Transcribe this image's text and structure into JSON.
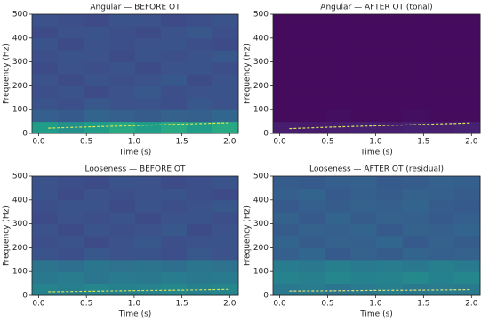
{
  "chart_data": [
    {
      "type": "spectrogram",
      "title": "Angular — BEFORE OT",
      "xlabel": "Time (s)",
      "ylabel": "Frequency (Hz)",
      "xlim": [
        -0.07,
        2.09
      ],
      "ylim": [
        0,
        500
      ],
      "xticks": [
        {
          "value": 0,
          "label": "0.0"
        },
        {
          "value": 0.5,
          "label": "0.5"
        },
        {
          "value": 1,
          "label": "1.0"
        },
        {
          "value": 1.5,
          "label": "1.5"
        },
        {
          "value": 2,
          "label": "2.0"
        }
      ],
      "yticks": [
        0,
        100,
        200,
        300,
        400,
        500
      ],
      "colormap": "viridis",
      "zlim": [
        0,
        1
      ],
      "z": [
        [
          0.55,
          0.5,
          0.55,
          0.6,
          0.55,
          0.6,
          0.55,
          0.6
        ],
        [
          0.3,
          0.28,
          0.32,
          0.3,
          0.29,
          0.31,
          0.3,
          0.33
        ],
        [
          0.26,
          0.24,
          0.27,
          0.25,
          0.26,
          0.24,
          0.27,
          0.25
        ],
        [
          0.24,
          0.26,
          0.23,
          0.25,
          0.27,
          0.24,
          0.25,
          0.26
        ],
        [
          0.25,
          0.23,
          0.26,
          0.24,
          0.25,
          0.27,
          0.23,
          0.25
        ],
        [
          0.23,
          0.25,
          0.24,
          0.26,
          0.23,
          0.25,
          0.26,
          0.24
        ],
        [
          0.24,
          0.26,
          0.25,
          0.23,
          0.26,
          0.24,
          0.25,
          0.27
        ],
        [
          0.26,
          0.23,
          0.25,
          0.24,
          0.25,
          0.26,
          0.24,
          0.23
        ],
        [
          0.23,
          0.25,
          0.26,
          0.24,
          0.23,
          0.25,
          0.27,
          0.24
        ],
        [
          0.25,
          0.24,
          0.23,
          0.26,
          0.25,
          0.23,
          0.24,
          0.26
        ]
      ],
      "ridge": {
        "x": [
          0.1,
          0.5,
          1.0,
          1.5,
          2.0
        ],
        "y": [
          22,
          27,
          33,
          39,
          45
        ],
        "color": "#d9e35a"
      }
    },
    {
      "type": "spectrogram",
      "title": "Angular — AFTER OT (tonal)",
      "xlabel": "Time (s)",
      "ylabel": "Frequency (Hz)",
      "xlim": [
        -0.07,
        2.09
      ],
      "ylim": [
        0,
        500
      ],
      "xticks": [
        {
          "value": 0,
          "label": "0.0"
        },
        {
          "value": 0.5,
          "label": "0.5"
        },
        {
          "value": 1,
          "label": "1.0"
        },
        {
          "value": 1.5,
          "label": "1.5"
        },
        {
          "value": 2,
          "label": "2.0"
        }
      ],
      "yticks": [
        0,
        100,
        200,
        300,
        400,
        500
      ],
      "colormap": "viridis",
      "zlim": [
        0,
        1
      ],
      "z": [
        [
          0.08,
          0.07,
          0.08,
          0.09,
          0.08,
          0.09,
          0.08,
          0.09
        ],
        [
          0.03,
          0.03,
          0.04,
          0.03,
          0.03,
          0.04,
          0.03,
          0.03
        ],
        [
          0.03,
          0.03,
          0.03,
          0.03,
          0.03,
          0.03,
          0.03,
          0.03
        ],
        [
          0.03,
          0.03,
          0.03,
          0.03,
          0.03,
          0.03,
          0.03,
          0.03
        ],
        [
          0.03,
          0.03,
          0.03,
          0.03,
          0.03,
          0.03,
          0.03,
          0.03
        ],
        [
          0.03,
          0.03,
          0.03,
          0.03,
          0.03,
          0.03,
          0.03,
          0.03
        ],
        [
          0.03,
          0.03,
          0.03,
          0.03,
          0.03,
          0.03,
          0.03,
          0.03
        ],
        [
          0.03,
          0.03,
          0.03,
          0.03,
          0.03,
          0.03,
          0.03,
          0.03
        ],
        [
          0.03,
          0.03,
          0.03,
          0.03,
          0.03,
          0.03,
          0.03,
          0.03
        ],
        [
          0.03,
          0.03,
          0.03,
          0.03,
          0.03,
          0.03,
          0.03,
          0.03
        ]
      ],
      "ridge": {
        "x": [
          0.1,
          0.5,
          1.0,
          1.5,
          2.0
        ],
        "y": [
          20,
          26,
          32,
          38,
          44
        ],
        "color": "#d9e35a"
      }
    },
    {
      "type": "spectrogram",
      "title": "Looseness — BEFORE OT",
      "xlabel": "Time (s)",
      "ylabel": "Frequency (Hz)",
      "xlim": [
        -0.07,
        2.09
      ],
      "ylim": [
        0,
        500
      ],
      "xticks": [
        {
          "value": 0,
          "label": "0.0"
        },
        {
          "value": 0.5,
          "label": "0.5"
        },
        {
          "value": 1,
          "label": "1.0"
        },
        {
          "value": 1.5,
          "label": "1.5"
        },
        {
          "value": 2,
          "label": "2.0"
        }
      ],
      "yticks": [
        0,
        100,
        200,
        300,
        400,
        500
      ],
      "colormap": "viridis",
      "zlim": [
        0,
        1
      ],
      "z": [
        [
          0.45,
          0.43,
          0.46,
          0.44,
          0.45,
          0.47,
          0.44,
          0.46
        ],
        [
          0.4,
          0.42,
          0.39,
          0.41,
          0.4,
          0.42,
          0.4,
          0.41
        ],
        [
          0.38,
          0.36,
          0.39,
          0.37,
          0.38,
          0.36,
          0.39,
          0.37
        ],
        [
          0.26,
          0.24,
          0.27,
          0.25,
          0.26,
          0.24,
          0.27,
          0.25
        ],
        [
          0.24,
          0.26,
          0.23,
          0.25,
          0.27,
          0.24,
          0.25,
          0.26
        ],
        [
          0.25,
          0.23,
          0.26,
          0.24,
          0.25,
          0.27,
          0.23,
          0.25
        ],
        [
          0.23,
          0.25,
          0.24,
          0.26,
          0.23,
          0.25,
          0.26,
          0.24
        ],
        [
          0.24,
          0.26,
          0.25,
          0.23,
          0.26,
          0.24,
          0.25,
          0.27
        ],
        [
          0.26,
          0.23,
          0.25,
          0.24,
          0.25,
          0.26,
          0.24,
          0.23
        ],
        [
          0.25,
          0.24,
          0.23,
          0.26,
          0.25,
          0.23,
          0.24,
          0.26
        ]
      ],
      "ridge": {
        "x": [
          0.1,
          0.5,
          1.0,
          1.5,
          2.0
        ],
        "y": [
          15,
          17,
          20,
          22,
          25
        ],
        "color": "#d9e35a"
      }
    },
    {
      "type": "spectrogram",
      "title": "Looseness — AFTER OT (residual)",
      "xlabel": "Time (s)",
      "ylabel": "Frequency (Hz)",
      "xlim": [
        -0.07,
        2.09
      ],
      "ylim": [
        0,
        500
      ],
      "xticks": [
        {
          "value": 0,
          "label": "0.0"
        },
        {
          "value": 0.5,
          "label": "0.5"
        },
        {
          "value": 1,
          "label": "1.0"
        },
        {
          "value": 1.5,
          "label": "1.5"
        },
        {
          "value": 2,
          "label": "2.0"
        }
      ],
      "yticks": [
        0,
        100,
        200,
        300,
        400,
        500
      ],
      "colormap": "viridis",
      "zlim": [
        0,
        1
      ],
      "z": [
        [
          0.4,
          0.42,
          0.39,
          0.41,
          0.43,
          0.4,
          0.42,
          0.41
        ],
        [
          0.45,
          0.43,
          0.46,
          0.44,
          0.45,
          0.47,
          0.44,
          0.46
        ],
        [
          0.42,
          0.4,
          0.43,
          0.41,
          0.42,
          0.4,
          0.43,
          0.41
        ],
        [
          0.3,
          0.33,
          0.28,
          0.31,
          0.29,
          0.32,
          0.3,
          0.31
        ],
        [
          0.32,
          0.29,
          0.31,
          0.3,
          0.33,
          0.28,
          0.31,
          0.29
        ],
        [
          0.29,
          0.31,
          0.3,
          0.32,
          0.28,
          0.31,
          0.3,
          0.32
        ],
        [
          0.31,
          0.28,
          0.32,
          0.29,
          0.31,
          0.3,
          0.28,
          0.3
        ],
        [
          0.28,
          0.3,
          0.29,
          0.31,
          0.3,
          0.32,
          0.29,
          0.28
        ],
        [
          0.3,
          0.32,
          0.28,
          0.3,
          0.29,
          0.31,
          0.3,
          0.29
        ],
        [
          0.29,
          0.28,
          0.3,
          0.31,
          0.28,
          0.29,
          0.31,
          0.3
        ]
      ],
      "ridge": {
        "x": [
          0.1,
          0.5,
          1.0,
          1.5,
          2.0
        ],
        "y": [
          18,
          19,
          21,
          22,
          24
        ],
        "color": "#e8e070"
      }
    }
  ]
}
